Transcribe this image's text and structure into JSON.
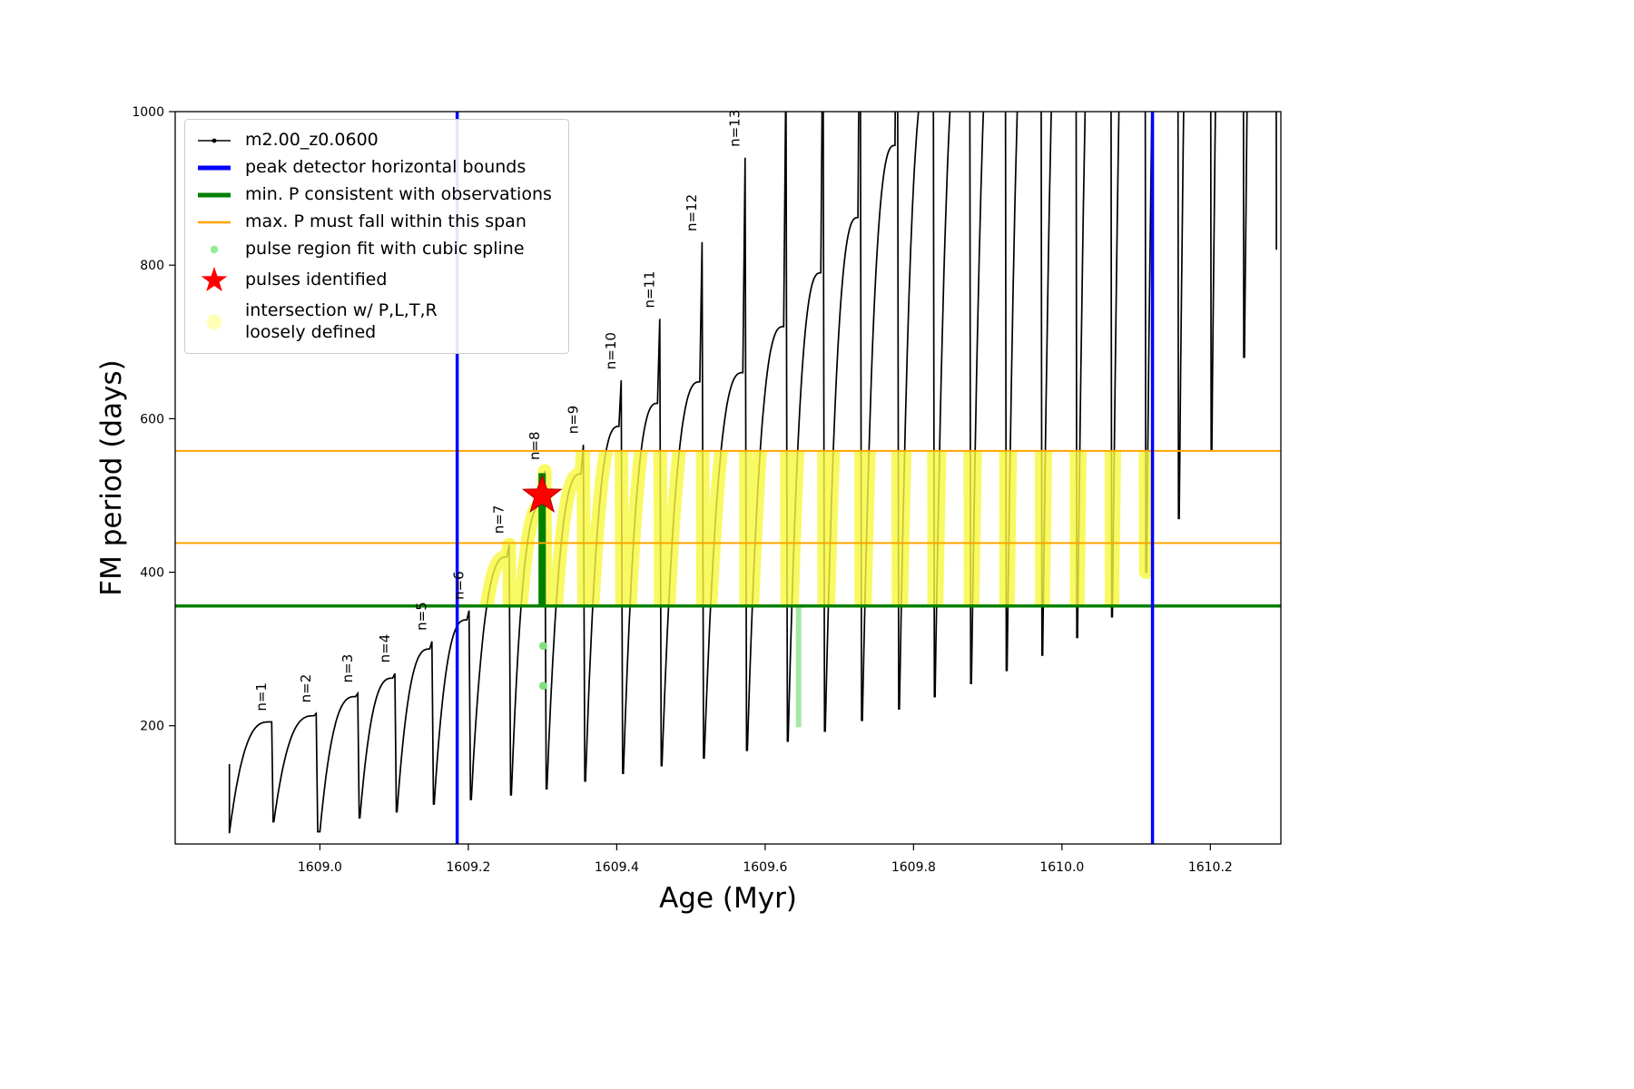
{
  "colors": {
    "series": "#000000",
    "bounds_blue": "#0000ff",
    "min_p_green": "#028102",
    "max_p_orange": "#ffa500",
    "spline_green_light": "#90ee90",
    "spline_green_dark": "#008000",
    "mint": "#9fe8a0",
    "pulse_red": "#ff0000",
    "intersection_yellow": "#f8f83c",
    "intersection_yellow_legend": "#ffffb0"
  },
  "legend": {
    "items": [
      {
        "label": "m2.00_z0.0600"
      },
      {
        "label": "peak detector horizontal bounds"
      },
      {
        "label": "min. P consistent with observations"
      },
      {
        "label": "max. P must fall within this span"
      },
      {
        "label": "pulse region fit with cubic spline"
      },
      {
        "label": "pulses identified"
      },
      {
        "label": "intersection w/ P,L,T,R\nloosely defined"
      }
    ]
  },
  "axes": {
    "xlabel": "Age (Myr)",
    "ylabel": "FM period (days)",
    "xlim": [
      1608.805,
      1610.295
    ],
    "ylim": [
      46,
      1000
    ],
    "xticks": [
      1609.0,
      1609.2,
      1609.4,
      1609.6,
      1609.8,
      1610.0,
      1610.2
    ],
    "xtick_labels": [
      "1609.0",
      "1609.2",
      "1609.4",
      "1609.6",
      "1609.8",
      "1610.0",
      "1610.2"
    ],
    "yticks": [
      200,
      400,
      600,
      800,
      1000
    ],
    "ytick_labels": [
      "200",
      "400",
      "600",
      "800",
      "1000"
    ]
  },
  "chart_data": {
    "type": "line",
    "title": "",
    "xlabel": "Age (Myr)",
    "ylabel": "FM period (days)",
    "series_name": "m2.00_z0.0600",
    "pulses": [
      {
        "n": 1,
        "x0": 1608.878,
        "y0": 60,
        "x1": 1608.932,
        "sh": 205,
        "pk": 205
      },
      {
        "n": 2,
        "x0": 1608.938,
        "y0": 75,
        "x1": 1608.992,
        "sh": 213,
        "pk": 216
      },
      {
        "n": 3,
        "x0": 1609.0,
        "y0": 62,
        "x1": 1609.048,
        "sh": 238,
        "pk": 242
      },
      {
        "n": 4,
        "x0": 1609.054,
        "y0": 80,
        "x1": 1609.098,
        "sh": 262,
        "pk": 268
      },
      {
        "n": 5,
        "x0": 1609.104,
        "y0": 88,
        "x1": 1609.148,
        "sh": 300,
        "pk": 310
      },
      {
        "n": 6,
        "x0": 1609.154,
        "y0": 98,
        "x1": 1609.198,
        "sh": 338,
        "pk": 350
      },
      {
        "n": 7,
        "x0": 1609.204,
        "y0": 104,
        "x1": 1609.252,
        "sh": 420,
        "pk": 436
      },
      {
        "n": 8,
        "x0": 1609.258,
        "y0": 110,
        "x1": 1609.3,
        "sh": 488,
        "pk": 532
      },
      {
        "n": 9,
        "x0": 1609.306,
        "y0": 118,
        "x1": 1609.352,
        "sh": 528,
        "pk": 566
      },
      {
        "n": 10,
        "x0": 1609.358,
        "y0": 128,
        "x1": 1609.403,
        "sh": 590,
        "pk": 650
      },
      {
        "n": 11,
        "x0": 1609.409,
        "y0": 138,
        "x1": 1609.455,
        "sh": 620,
        "pk": 730
      },
      {
        "n": 12,
        "x0": 1609.461,
        "y0": 148,
        "x1": 1609.512,
        "sh": 648,
        "pk": 830
      },
      {
        "n": 13,
        "x0": 1609.518,
        "y0": 158,
        "x1": 1609.57,
        "sh": 660,
        "pk": 940
      },
      {
        "n": null,
        "x0": 1609.576,
        "y0": 168,
        "x1": 1609.625,
        "sh": 720,
        "pk": 1060
      },
      {
        "n": null,
        "x0": 1609.631,
        "y0": 180,
        "x1": 1609.675,
        "sh": 790,
        "pk": 1160
      },
      {
        "n": null,
        "x0": 1609.681,
        "y0": 193,
        "x1": 1609.725,
        "sh": 862,
        "pk": 1260
      },
      {
        "n": null,
        "x0": 1609.731,
        "y0": 207,
        "x1": 1609.775,
        "sh": 956,
        "pk": 1360
      },
      {
        "n": null,
        "x0": 1609.781,
        "y0": 222,
        "x1": 1609.823,
        "sh": 1060,
        "pk": 1460
      },
      {
        "n": null,
        "x0": 1609.829,
        "y0": 238,
        "x1": 1609.872,
        "sh": 1160,
        "pk": 1560
      },
      {
        "n": null,
        "x0": 1609.878,
        "y0": 255,
        "x1": 1609.92,
        "sh": 1260,
        "pk": 1660
      },
      {
        "n": null,
        "x0": 1609.926,
        "y0": 272,
        "x1": 1609.968,
        "sh": 1360,
        "pk": 1760
      },
      {
        "n": null,
        "x0": 1609.974,
        "y0": 292,
        "x1": 1610.015,
        "sh": 1460,
        "pk": 1860
      },
      {
        "n": null,
        "x0": 1610.021,
        "y0": 315,
        "x1": 1610.062,
        "sh": 1560,
        "pk": 1960
      },
      {
        "n": null,
        "x0": 1610.068,
        "y0": 342,
        "x1": 1610.108,
        "sh": 1660,
        "pk": 2060
      },
      {
        "n": null,
        "x0": 1610.114,
        "y0": 400,
        "x1": 1610.152,
        "sh": 1760,
        "pk": 2160
      },
      {
        "n": null,
        "x0": 1610.158,
        "y0": 470,
        "x1": 1610.196,
        "sh": 1860,
        "pk": 2260
      },
      {
        "n": null,
        "x0": 1610.202,
        "y0": 560,
        "x1": 1610.24,
        "sh": 1960,
        "pk": 2360
      },
      {
        "n": null,
        "x0": 1610.246,
        "y0": 680,
        "x1": 1610.284,
        "sh": 2060,
        "pk": 2460
      }
    ],
    "vlines": {
      "label": "peak detector horizontal bounds",
      "x": [
        1609.185,
        1610.122
      ],
      "color_key": "bounds_blue",
      "width": 3.5
    },
    "hlines": [
      {
        "label": "min. P consistent with observations",
        "y": 356,
        "color_key": "min_p_green",
        "width": 3.5
      },
      {
        "label": "max. P must fall within this span (lower)",
        "y": 438,
        "color_key": "max_p_orange",
        "width": 2
      },
      {
        "label": "max. P must fall within this span (upper)",
        "y": 558,
        "color_key": "max_p_orange",
        "width": 2
      }
    ],
    "intersection_band": {
      "xmin": 1609.185,
      "xmax": 1610.122,
      "ymin": 356,
      "ymax": 558
    },
    "spline_regions": [
      {
        "x": 1609.2995,
        "y1": 356,
        "y2": 529,
        "color_key": "spline_green_dark",
        "width": 8
      },
      {
        "x": 1609.645,
        "y1": 198,
        "y2": 356,
        "color_key": "mint",
        "width": 6
      }
    ],
    "spline_dots": [
      {
        "x": 1609.301,
        "y": 304
      },
      {
        "x": 1609.301,
        "y": 252
      }
    ],
    "pulses_identified": [
      {
        "x": 1609.2995,
        "y": 500
      }
    ]
  }
}
